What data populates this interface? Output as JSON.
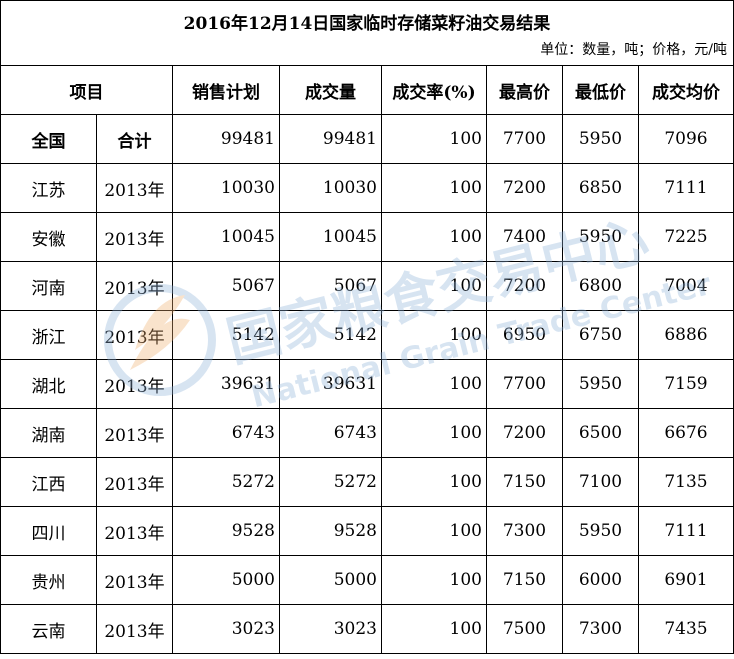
{
  "title": "2016年12月14日国家临时存储菜籽油交易结果",
  "unit_note": "单位：数量，吨；价格，元/吨",
  "headers": {
    "item": "项目",
    "plan": "销售计划",
    "volume": "成交量",
    "rate": "成交率(%)",
    "max": "最高价",
    "min": "最低价",
    "avg": "成交均价"
  },
  "rows": [
    {
      "prov": "全国",
      "year": "合计",
      "plan": "99481",
      "volume": "99481",
      "rate": "100",
      "max": "7700",
      "min": "5950",
      "avg": "7096"
    },
    {
      "prov": "江苏",
      "year": "2013年",
      "plan": "10030",
      "volume": "10030",
      "rate": "100",
      "max": "7200",
      "min": "6850",
      "avg": "7111"
    },
    {
      "prov": "安徽",
      "year": "2013年",
      "plan": "10045",
      "volume": "10045",
      "rate": "100",
      "max": "7400",
      "min": "5950",
      "avg": "7225"
    },
    {
      "prov": "河南",
      "year": "2013年",
      "plan": "5067",
      "volume": "5067",
      "rate": "100",
      "max": "7200",
      "min": "6800",
      "avg": "7004"
    },
    {
      "prov": "浙江",
      "year": "2013年",
      "plan": "5142",
      "volume": "5142",
      "rate": "100",
      "max": "6950",
      "min": "6750",
      "avg": "6886"
    },
    {
      "prov": "湖北",
      "year": "2013年",
      "plan": "39631",
      "volume": "39631",
      "rate": "100",
      "max": "7700",
      "min": "5950",
      "avg": "7159"
    },
    {
      "prov": "湖南",
      "year": "2013年",
      "plan": "6743",
      "volume": "6743",
      "rate": "100",
      "max": "7200",
      "min": "6500",
      "avg": "6676"
    },
    {
      "prov": "江西",
      "year": "2013年",
      "plan": "5272",
      "volume": "5272",
      "rate": "100",
      "max": "7150",
      "min": "7100",
      "avg": "7135"
    },
    {
      "prov": "四川",
      "year": "2013年",
      "plan": "9528",
      "volume": "9528",
      "rate": "100",
      "max": "7300",
      "min": "5950",
      "avg": "7111"
    },
    {
      "prov": "贵州",
      "year": "2013年",
      "plan": "5000",
      "volume": "5000",
      "rate": "100",
      "max": "7150",
      "min": "6000",
      "avg": "6901"
    },
    {
      "prov": "云南",
      "year": "2013年",
      "plan": "3023",
      "volume": "3023",
      "rate": "100",
      "max": "7500",
      "min": "7300",
      "avg": "7435"
    }
  ],
  "watermark": {
    "cn": "国家粮食交易中心",
    "en": "National Grain Trade Center",
    "color": "#8fb3d9",
    "logo_color": "#f0b070"
  }
}
